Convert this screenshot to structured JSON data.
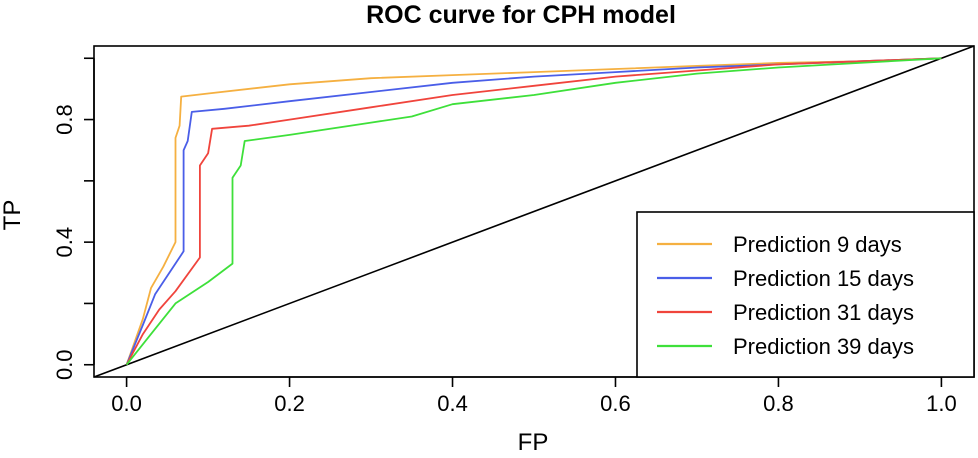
{
  "chart_data": {
    "type": "line",
    "title": "ROC curve for CPH model",
    "xlabel": "FP",
    "ylabel": "TP",
    "xlim": [
      -0.04,
      1.04
    ],
    "ylim": [
      -0.04,
      1.04
    ],
    "x_ticks": [
      0.0,
      0.2,
      0.4,
      0.6,
      0.8,
      1.0
    ],
    "x_tick_labels": [
      "0.0",
      "0.2",
      "0.4",
      "0.6",
      "0.8",
      "1.0"
    ],
    "y_ticks": [
      0.0,
      0.2,
      0.4,
      0.6,
      0.8,
      1.0
    ],
    "y_tick_labels": [
      "0.0",
      "",
      "0.4",
      "",
      "0.8",
      ""
    ],
    "grid": false,
    "legend_position": "bottom-right",
    "reference_line": {
      "x": [
        -0.04,
        1.04
      ],
      "y": [
        -0.04,
        1.04
      ],
      "color": "#000000"
    },
    "series": [
      {
        "name": "Prediction 9 days",
        "color": "#f5b041",
        "x": [
          0.0,
          0.02,
          0.03,
          0.045,
          0.06,
          0.06,
          0.065,
          0.067,
          0.1,
          0.2,
          0.3,
          0.4,
          0.5,
          0.6,
          0.7,
          0.8,
          0.9,
          1.0
        ],
        "y": [
          0.0,
          0.15,
          0.25,
          0.32,
          0.4,
          0.74,
          0.78,
          0.875,
          0.885,
          0.915,
          0.935,
          0.945,
          0.955,
          0.965,
          0.975,
          0.985,
          0.99,
          1.0
        ]
      },
      {
        "name": "Prediction 15 days",
        "color": "#4a5ee8",
        "x": [
          0.0,
          0.02,
          0.035,
          0.05,
          0.07,
          0.07,
          0.075,
          0.08,
          0.12,
          0.2,
          0.3,
          0.4,
          0.5,
          0.6,
          0.7,
          0.8,
          0.9,
          1.0
        ],
        "y": [
          0.0,
          0.13,
          0.23,
          0.29,
          0.37,
          0.7,
          0.73,
          0.825,
          0.835,
          0.86,
          0.89,
          0.92,
          0.94,
          0.955,
          0.97,
          0.98,
          0.99,
          1.0
        ]
      },
      {
        "name": "Prediction 31 days",
        "color": "#f0443c",
        "x": [
          0.0,
          0.02,
          0.04,
          0.06,
          0.09,
          0.09,
          0.1,
          0.105,
          0.15,
          0.2,
          0.3,
          0.4,
          0.5,
          0.6,
          0.7,
          0.8,
          0.9,
          1.0
        ],
        "y": [
          0.0,
          0.1,
          0.18,
          0.24,
          0.35,
          0.65,
          0.69,
          0.77,
          0.78,
          0.8,
          0.84,
          0.88,
          0.91,
          0.94,
          0.96,
          0.98,
          0.99,
          1.0
        ]
      },
      {
        "name": "Prediction 39 days",
        "color": "#3ee03a",
        "x": [
          0.0,
          0.03,
          0.06,
          0.1,
          0.13,
          0.13,
          0.14,
          0.145,
          0.2,
          0.3,
          0.35,
          0.4,
          0.5,
          0.6,
          0.7,
          0.8,
          0.9,
          1.0
        ],
        "y": [
          0.0,
          0.1,
          0.2,
          0.27,
          0.33,
          0.61,
          0.65,
          0.73,
          0.75,
          0.79,
          0.81,
          0.85,
          0.88,
          0.92,
          0.95,
          0.97,
          0.985,
          1.0
        ]
      }
    ]
  }
}
